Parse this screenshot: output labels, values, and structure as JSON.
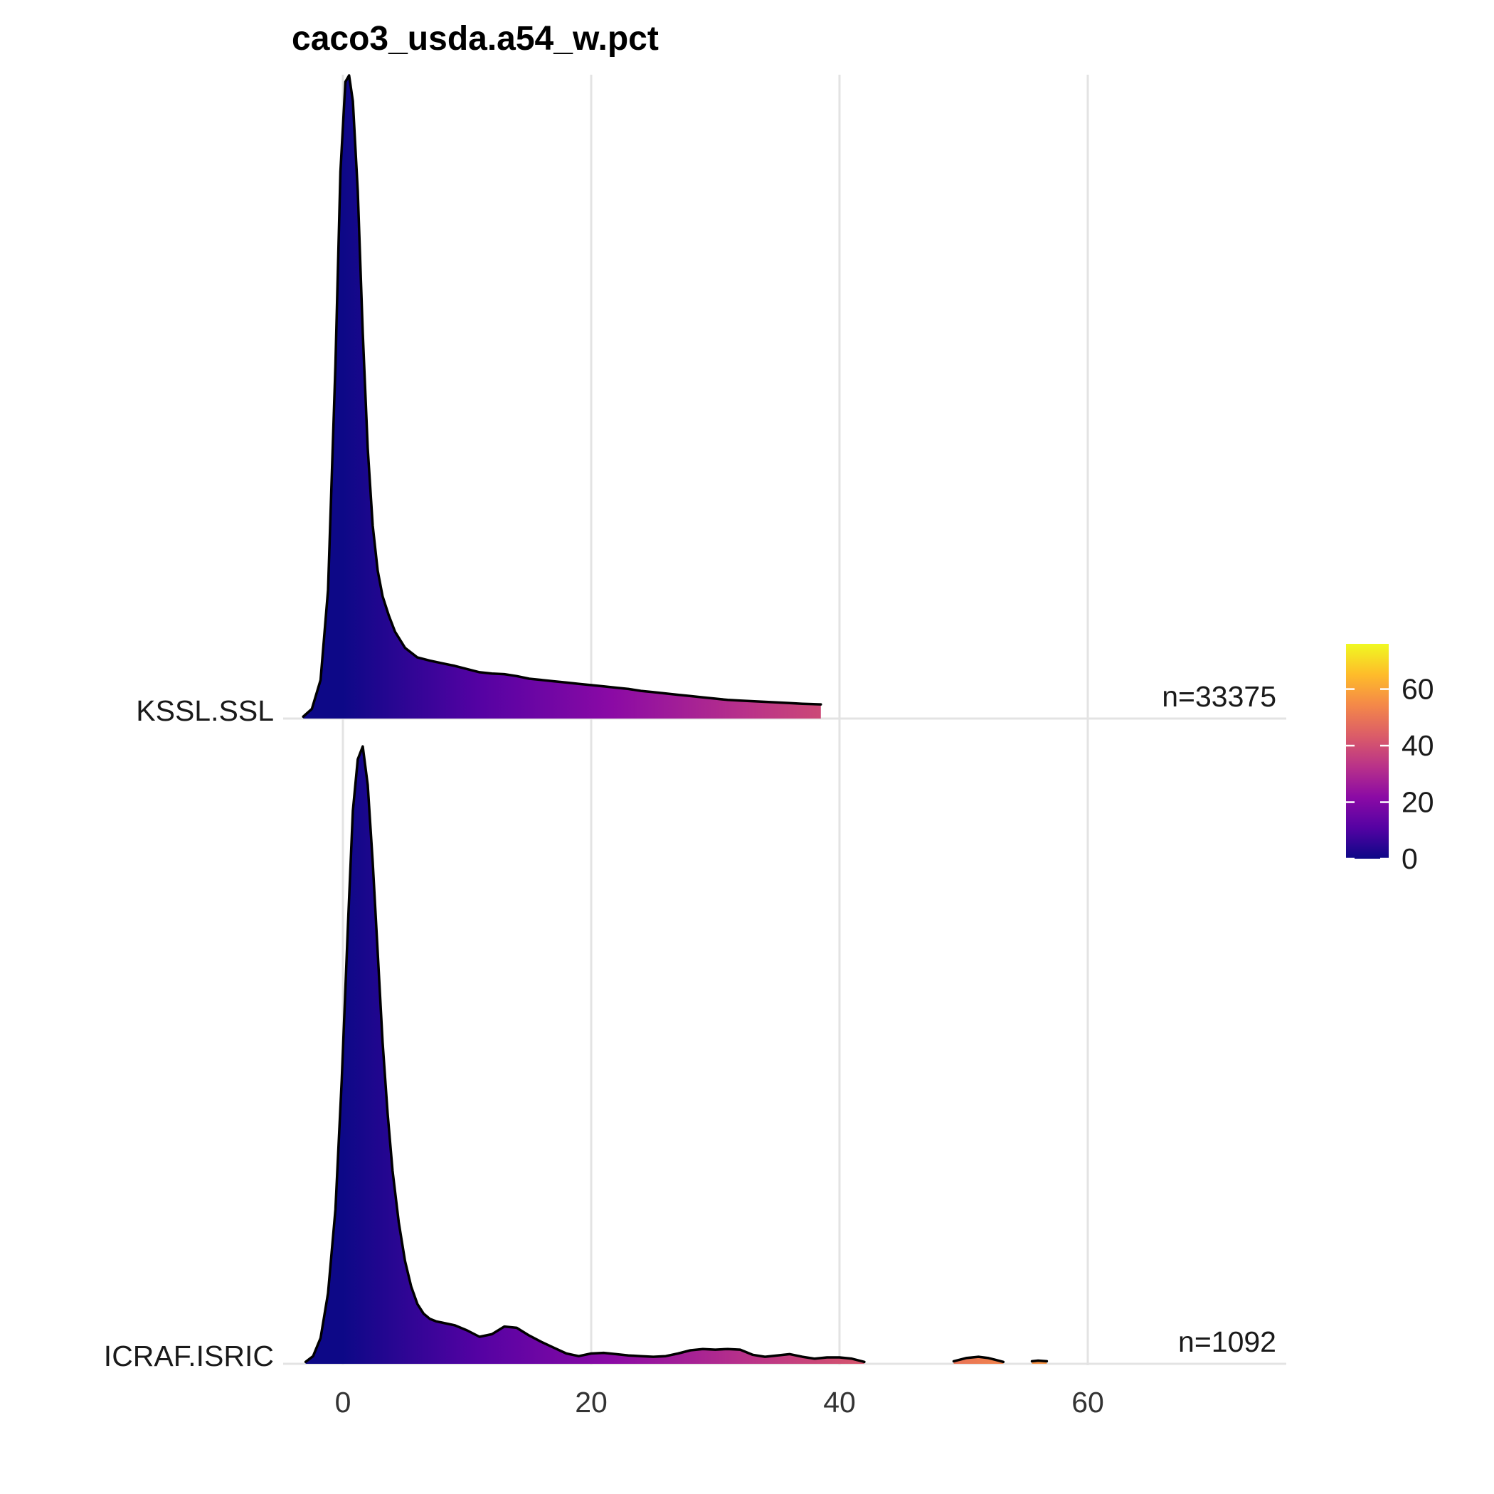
{
  "chart_data": {
    "type": "area",
    "subtype": "ridgeline-density",
    "title": "caco3_usda.a54_w.pct",
    "xlabel": "",
    "ylabel": "",
    "xlim": [
      -7,
      76
    ],
    "x_ticks": [
      0,
      20,
      40,
      60
    ],
    "x_tick_labels": [
      "0",
      "20",
      "40",
      "60"
    ],
    "grid": "vertical-major",
    "legend": {
      "position": "right",
      "type": "colorbar",
      "range": [
        0,
        76
      ],
      "ticks": [
        0,
        20,
        40,
        60
      ],
      "tick_labels": [
        "0",
        "20",
        "40",
        "60"
      ],
      "palette": "plasma"
    },
    "colors": {
      "stops": [
        "#0d0887",
        "#5402a3",
        "#8b0aa5",
        "#b93289",
        "#db5c68",
        "#f48849",
        "#febc2a",
        "#f0f921"
      ],
      "outline": "#000000",
      "grid": "#e3e3e3"
    },
    "series": [
      {
        "name": "KSSL.SSL",
        "annotation": "n=33375",
        "x": [
          -3.2,
          -2.5,
          -1.8,
          -1.2,
          -0.6,
          -0.2,
          0.2,
          0.5,
          0.8,
          1.2,
          1.6,
          2,
          2.4,
          2.8,
          3.2,
          3.7,
          4.2,
          5,
          6,
          7,
          8,
          9,
          10,
          11,
          12,
          13,
          14,
          15,
          16,
          17,
          18,
          19,
          20,
          21,
          22,
          23,
          24,
          25,
          26,
          27,
          28,
          29,
          30,
          31,
          32,
          33,
          34,
          35,
          36,
          37,
          38.5
        ],
        "y": [
          0.003,
          0.015,
          0.06,
          0.2,
          0.55,
          0.85,
          0.99,
          1.0,
          0.96,
          0.82,
          0.6,
          0.42,
          0.3,
          0.23,
          0.19,
          0.16,
          0.135,
          0.11,
          0.095,
          0.09,
          0.086,
          0.082,
          0.077,
          0.072,
          0.07,
          0.069,
          0.066,
          0.062,
          0.06,
          0.058,
          0.056,
          0.054,
          0.052,
          0.05,
          0.048,
          0.046,
          0.043,
          0.041,
          0.039,
          0.037,
          0.035,
          0.033,
          0.031,
          0.029,
          0.028,
          0.027,
          0.026,
          0.025,
          0.024,
          0.023,
          0.022
        ]
      },
      {
        "name": "ICRAF.ISRIC",
        "annotation": "n=1092",
        "x": [
          -3,
          -2.4,
          -1.8,
          -1.2,
          -0.6,
          -0.1,
          0.4,
          0.8,
          1.2,
          1.6,
          2,
          2.4,
          2.8,
          3.2,
          3.6,
          4,
          4.5,
          5,
          5.5,
          6,
          6.5,
          7,
          7.5,
          8,
          9,
          10,
          11,
          12,
          13,
          14,
          15,
          16,
          17,
          18,
          19,
          20,
          21,
          22,
          23,
          24,
          25,
          26,
          27,
          28,
          29,
          30,
          31,
          32,
          33,
          34,
          35,
          36,
          37,
          38,
          39,
          40,
          41,
          42
        ],
        "y": [
          0.003,
          0.012,
          0.04,
          0.11,
          0.24,
          0.44,
          0.68,
          0.86,
          0.94,
          0.96,
          0.9,
          0.78,
          0.64,
          0.5,
          0.39,
          0.3,
          0.22,
          0.16,
          0.12,
          0.093,
          0.078,
          0.07,
          0.066,
          0.064,
          0.06,
          0.052,
          0.042,
          0.046,
          0.058,
          0.056,
          0.044,
          0.034,
          0.025,
          0.016,
          0.012,
          0.016,
          0.017,
          0.015,
          0.013,
          0.012,
          0.011,
          0.012,
          0.016,
          0.021,
          0.023,
          0.022,
          0.023,
          0.022,
          0.014,
          0.011,
          0.013,
          0.015,
          0.011,
          0.008,
          0.01,
          0.01,
          0.008,
          0.003
        ],
        "extra_segments": [
          {
            "x": [
              49.2,
              50.2,
              51.2,
              52,
              52.6,
              53.2
            ],
            "y": [
              0.004,
              0.009,
              0.011,
              0.009,
              0.006,
              0.003
            ]
          },
          {
            "x": [
              55.5,
              56,
              56.7
            ],
            "y": [
              0.004,
              0.005,
              0.004
            ]
          }
        ]
      }
    ]
  }
}
